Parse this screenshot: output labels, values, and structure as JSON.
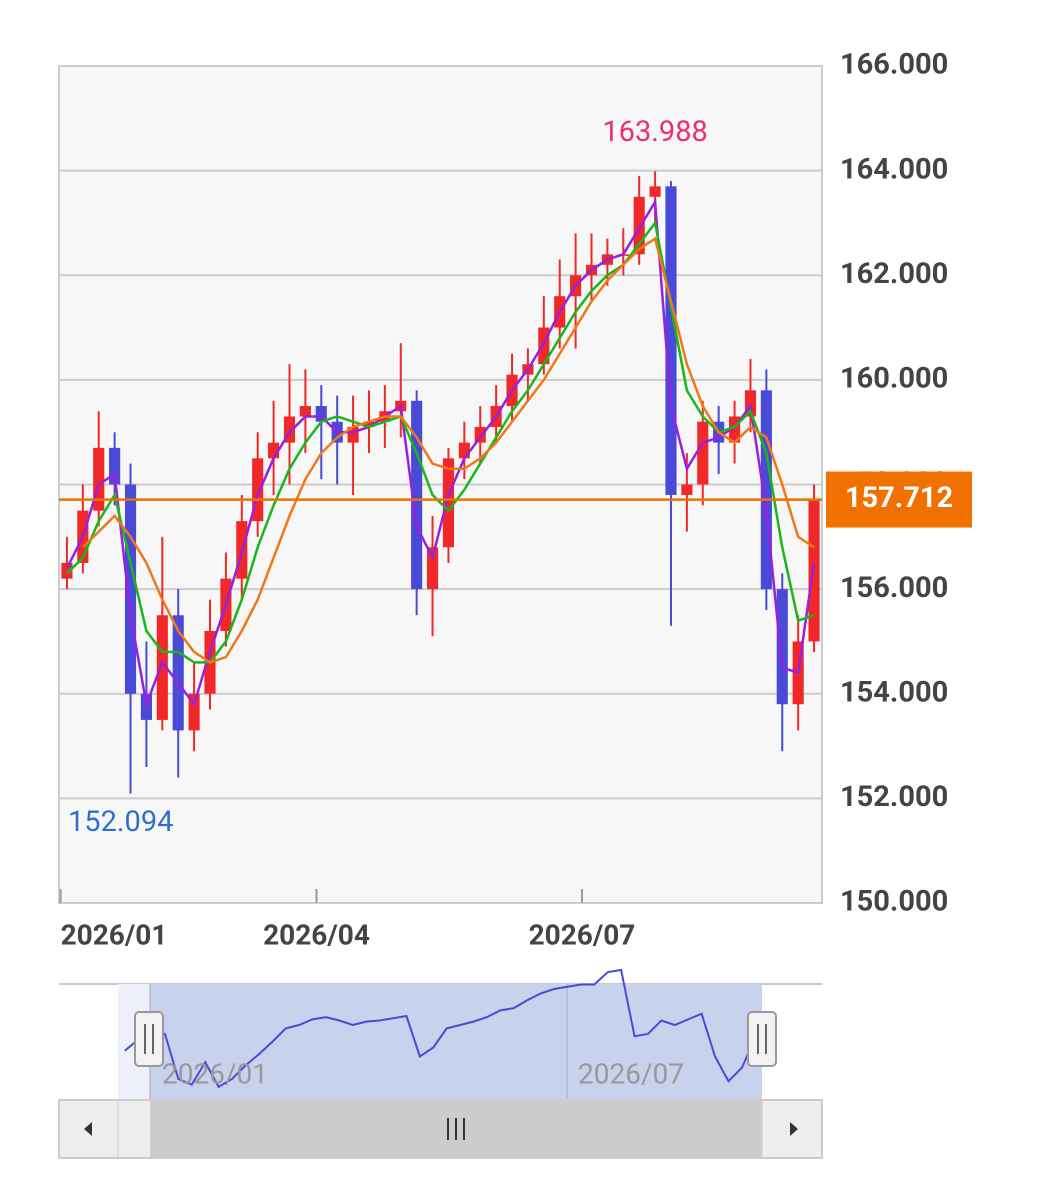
{
  "chart_data": {
    "type": "candlestick",
    "xlim": [
      0,
      48
    ],
    "ylim": [
      150,
      166
    ],
    "xticks": [
      {
        "value": 0.1,
        "label": "2026/01"
      },
      {
        "value": 16.2,
        "label": "2026/04"
      },
      {
        "value": 32.9,
        "label": "2026/07"
      }
    ],
    "yticks": [
      {
        "value": 150,
        "label": "150.000"
      },
      {
        "value": 152,
        "label": "152.000"
      },
      {
        "value": 154,
        "label": "154.000"
      },
      {
        "value": 156,
        "label": "156.000"
      },
      {
        "value": 158,
        "label": "158.000"
      },
      {
        "value": 160,
        "label": "160.000"
      },
      {
        "value": 162,
        "label": "162.000"
      },
      {
        "value": 164,
        "label": "164.000"
      },
      {
        "value": 166,
        "label": "166.000"
      }
    ],
    "grid": true,
    "up_color": "#f02828",
    "down_color": "#4a4ad8",
    "ohlc": [
      [
        156.2,
        157.0,
        156.0,
        156.5
      ],
      [
        156.5,
        158.0,
        156.3,
        157.5
      ],
      [
        157.5,
        159.4,
        157.2,
        158.7
      ],
      [
        158.7,
        159.0,
        157.6,
        158.0
      ],
      [
        158.0,
        158.4,
        152.094,
        154.0
      ],
      [
        154.0,
        155.0,
        152.6,
        153.5
      ],
      [
        153.5,
        157.0,
        153.3,
        155.5
      ],
      [
        155.5,
        156.0,
        152.4,
        153.3
      ],
      [
        153.3,
        154.6,
        152.9,
        154.0
      ],
      [
        154.0,
        155.8,
        153.7,
        155.2
      ],
      [
        155.2,
        156.7,
        154.9,
        156.2
      ],
      [
        156.2,
        157.8,
        155.8,
        157.3
      ],
      [
        157.3,
        159.0,
        157.0,
        158.5
      ],
      [
        158.5,
        159.6,
        157.8,
        158.8
      ],
      [
        158.8,
        160.3,
        158.0,
        159.3
      ],
      [
        159.3,
        160.2,
        158.6,
        159.5
      ],
      [
        159.5,
        159.9,
        158.1,
        159.2
      ],
      [
        159.2,
        159.7,
        158.0,
        158.8
      ],
      [
        158.8,
        159.7,
        157.8,
        159.1
      ],
      [
        159.1,
        159.8,
        158.6,
        159.2
      ],
      [
        159.2,
        159.9,
        158.7,
        159.4
      ],
      [
        159.4,
        160.7,
        158.9,
        159.6
      ],
      [
        159.6,
        159.8,
        155.5,
        156.0
      ],
      [
        156.0,
        157.4,
        155.1,
        156.8
      ],
      [
        156.8,
        158.7,
        156.5,
        158.5
      ],
      [
        158.5,
        159.2,
        158.1,
        158.8
      ],
      [
        158.8,
        159.5,
        158.4,
        159.1
      ],
      [
        159.1,
        159.9,
        158.8,
        159.5
      ],
      [
        159.5,
        160.5,
        159.2,
        160.1
      ],
      [
        160.1,
        160.6,
        159.6,
        160.3
      ],
      [
        160.3,
        161.6,
        160.1,
        161.0
      ],
      [
        161.0,
        162.3,
        160.6,
        161.6
      ],
      [
        161.6,
        162.8,
        160.6,
        162.0
      ],
      [
        162.0,
        162.8,
        161.5,
        162.2
      ],
      [
        162.2,
        162.7,
        161.8,
        162.4
      ],
      [
        162.4,
        162.9,
        162.0,
        162.4
      ],
      [
        162.4,
        163.9,
        162.2,
        163.5
      ],
      [
        163.5,
        163.988,
        163.0,
        163.7
      ],
      [
        163.7,
        163.8,
        155.3,
        157.8
      ],
      [
        157.8,
        158.6,
        157.1,
        158.0
      ],
      [
        158.0,
        159.6,
        157.6,
        159.2
      ],
      [
        159.2,
        159.5,
        158.2,
        158.8
      ],
      [
        158.8,
        159.6,
        158.4,
        159.3
      ],
      [
        159.3,
        160.4,
        159.0,
        159.8
      ],
      [
        159.8,
        160.2,
        155.6,
        156.0
      ],
      [
        156.0,
        156.3,
        152.9,
        153.8
      ],
      [
        153.8,
        155.5,
        153.3,
        155.0
      ],
      [
        155.0,
        158.0,
        154.8,
        157.712
      ]
    ],
    "series": [
      {
        "color": "#9a20e0",
        "values": [
          156.4,
          157.0,
          158.0,
          158.2,
          155.5,
          153.8,
          154.6,
          154.2,
          153.8,
          154.8,
          155.7,
          156.7,
          157.8,
          158.5,
          159.0,
          159.3,
          159.3,
          159.0,
          159.0,
          159.1,
          159.3,
          159.5,
          157.2,
          156.6,
          157.8,
          158.5,
          158.9,
          159.3,
          159.8,
          160.2,
          160.7,
          161.3,
          161.8,
          162.1,
          162.3,
          162.4,
          162.9,
          163.4,
          159.5,
          158.3,
          158.8,
          158.9,
          159.1,
          159.5,
          157.5,
          154.5,
          154.4,
          156.5
        ]
      },
      {
        "color": "#18b818",
        "values": [
          156.3,
          156.6,
          157.3,
          157.8,
          156.5,
          155.2,
          154.8,
          154.8,
          154.6,
          154.6,
          155.0,
          155.8,
          156.8,
          157.6,
          158.3,
          158.8,
          159.2,
          159.3,
          159.2,
          159.1,
          159.2,
          159.3,
          158.6,
          157.8,
          157.5,
          157.9,
          158.4,
          158.9,
          159.4,
          159.8,
          160.3,
          160.8,
          161.3,
          161.7,
          162.0,
          162.2,
          162.6,
          163.0,
          161.4,
          159.8,
          159.3,
          159.0,
          159.1,
          159.4,
          158.6,
          156.8,
          155.4,
          155.5
        ]
      },
      {
        "color": "#f07818",
        "values": [
          null,
          156.8,
          157.1,
          157.4,
          157.0,
          156.5,
          155.8,
          155.2,
          154.8,
          154.6,
          154.7,
          155.2,
          155.8,
          156.6,
          157.4,
          158.1,
          158.6,
          158.9,
          159.1,
          159.2,
          159.3,
          159.3,
          158.9,
          158.4,
          158.3,
          158.3,
          158.5,
          158.8,
          159.2,
          159.6,
          160.0,
          160.5,
          161.0,
          161.5,
          161.9,
          162.2,
          162.5,
          162.7,
          161.5,
          160.3,
          159.5,
          159.0,
          158.8,
          159.1,
          158.9,
          158.0,
          157.0,
          156.8
        ]
      }
    ],
    "high_label": 163.988,
    "low_label": 152.094,
    "last_price": 157.712
  }
}
